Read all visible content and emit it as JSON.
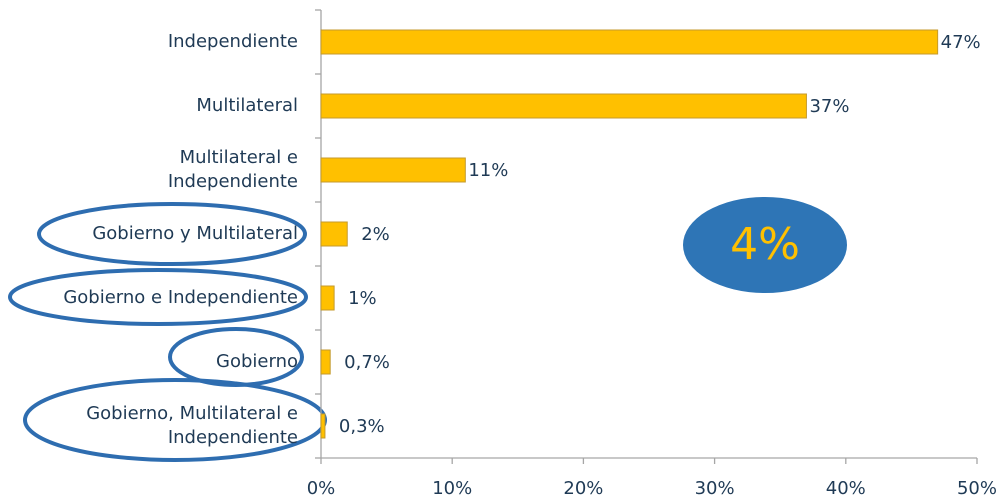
{
  "chart_data": {
    "type": "barh",
    "categories": [
      "Independiente",
      "Multilateral",
      "Multilateral e\nIndependiente",
      "Gobierno y Multilateral",
      "Gobierno e Independiente",
      "Gobierno",
      "Gobierno, Multilateral e\nIndependiente"
    ],
    "values": [
      47,
      37,
      11,
      2,
      1,
      0.7,
      0.3
    ],
    "value_labels": [
      "47%",
      "37%",
      "11%",
      "2%",
      "1%",
      "0,7%",
      "0,3%"
    ],
    "color": "#ffc000",
    "xlim": [
      0,
      50
    ],
    "xticks": [
      {
        "value": 0,
        "label": "0%"
      },
      {
        "value": 10,
        "label": "10%"
      },
      {
        "value": 20,
        "label": "20%"
      },
      {
        "value": 30,
        "label": "30%"
      },
      {
        "value": 40,
        "label": "40%"
      },
      {
        "value": 50,
        "label": "50%"
      }
    ],
    "annotations": [
      "4%"
    ]
  }
}
